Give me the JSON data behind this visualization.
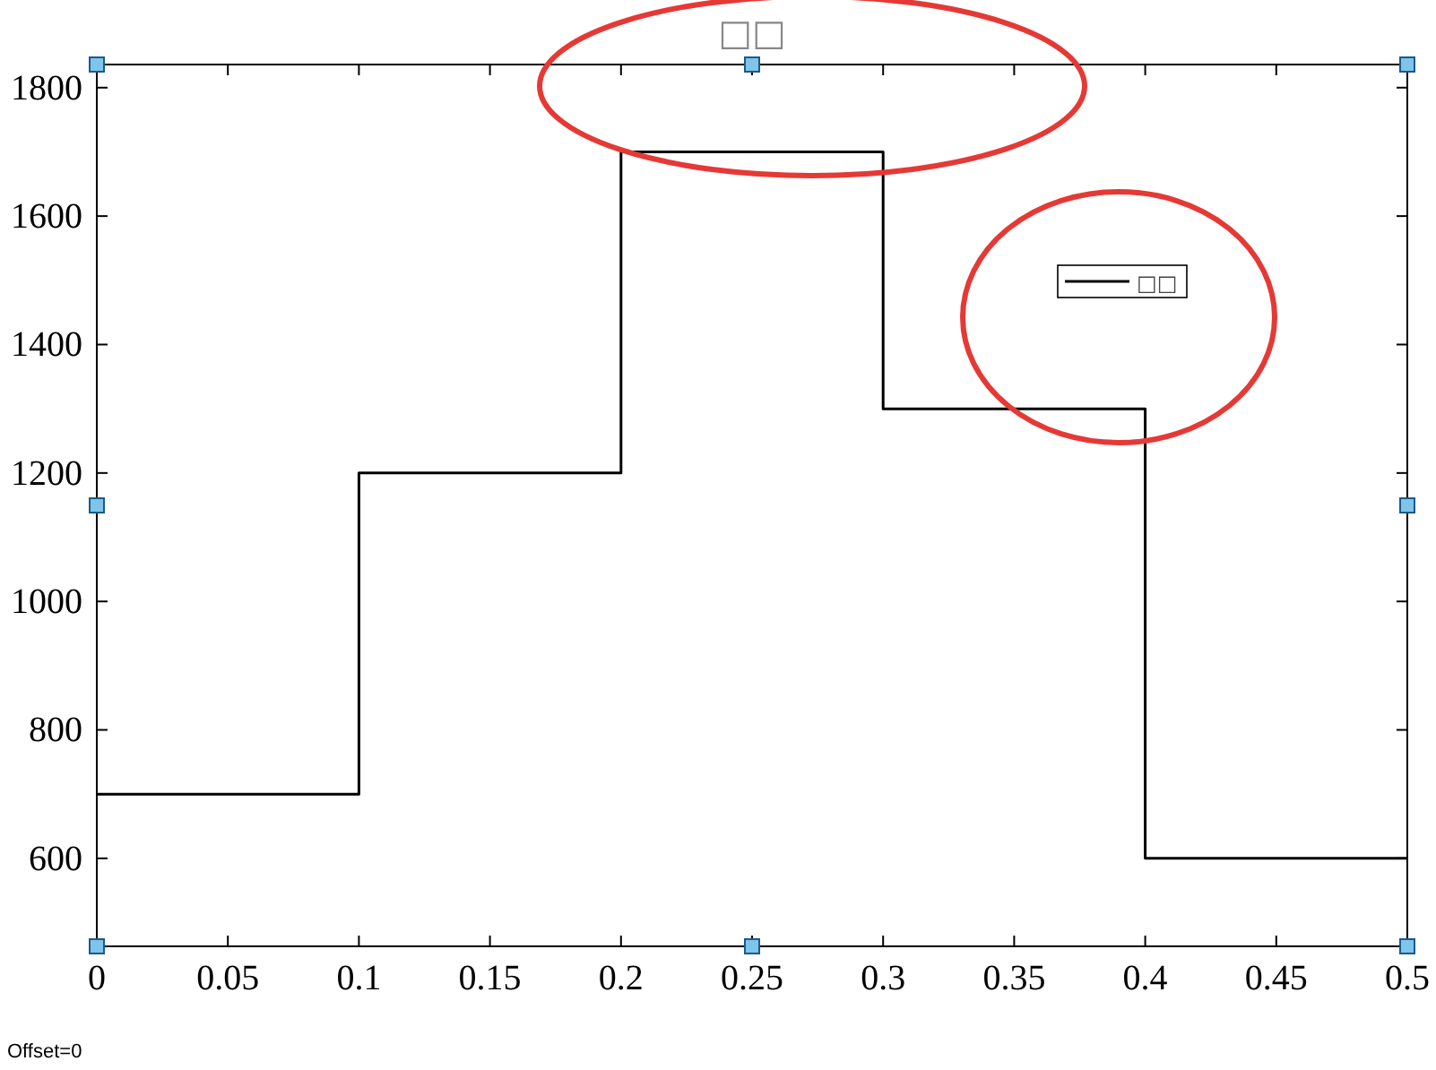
{
  "chart_data": {
    "type": "step",
    "title": "□□",
    "x": [
      0,
      0.1,
      0.2,
      0.3,
      0.4,
      0.5
    ],
    "series": [
      {
        "name": "□□",
        "color": "#000000",
        "values": [
          700,
          1200,
          1700,
          1300,
          600,
          600
        ]
      }
    ],
    "xlim": [
      0,
      0.5
    ],
    "xticks": [
      0,
      0.05,
      0.1,
      0.15,
      0.2,
      0.25,
      0.3,
      0.35,
      0.4,
      0.45,
      0.5
    ],
    "ylim": [
      463,
      1836
    ],
    "yticks": [
      600,
      800,
      1000,
      1200,
      1400,
      1600,
      1800
    ],
    "grid": false,
    "legend": "top right",
    "marker": "none",
    "line_style": "solid",
    "annotations": [
      "Offset=0"
    ]
  }
}
